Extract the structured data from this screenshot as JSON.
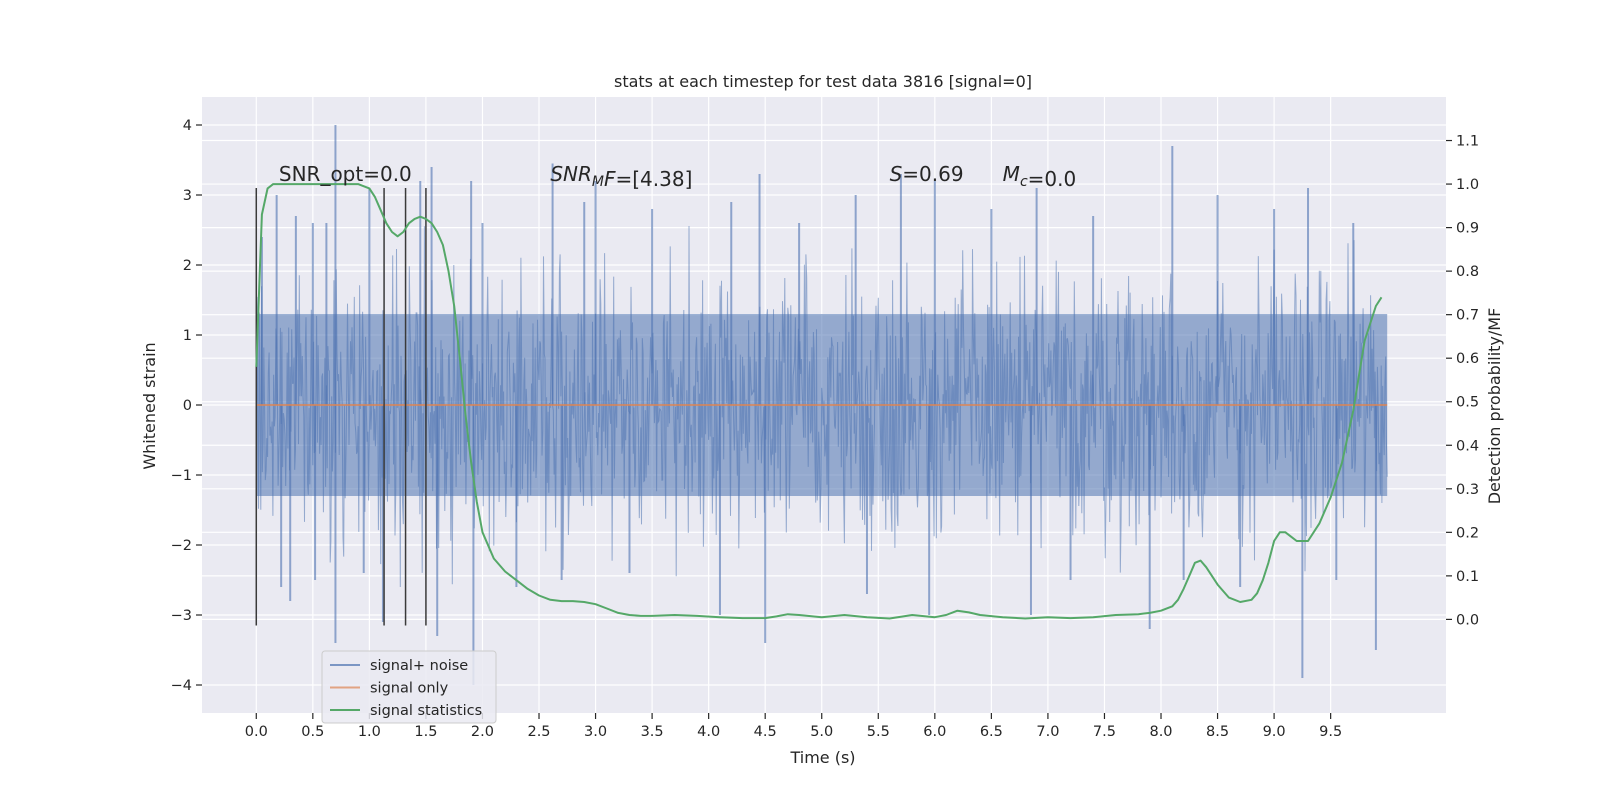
{
  "chart_data": {
    "type": "line",
    "title": "stats at each timestep for test data 3816 [signal=0]",
    "xlabel": "Time (s)",
    "ylabel": "Whitened strain",
    "y2label": "Detection probability/MF",
    "xlim": [
      -0.48,
      10.52
    ],
    "ylim": [
      -4.4,
      4.4
    ],
    "y2lim": [
      -0.215,
      1.2
    ],
    "x_ticks": [
      0.0,
      0.5,
      1.0,
      1.5,
      2.0,
      2.5,
      3.0,
      3.5,
      4.0,
      4.5,
      5.0,
      5.5,
      6.0,
      6.5,
      7.0,
      7.5,
      8.0,
      8.5,
      9.0,
      9.5
    ],
    "x_tick_labels": [
      "0.0",
      "0.5",
      "1.0",
      "1.5",
      "2.0",
      "2.5",
      "3.0",
      "3.5",
      "4.0",
      "4.5",
      "5.0",
      "5.5",
      "6.0",
      "6.5",
      "7.0",
      "7.5",
      "8.0",
      "8.5",
      "9.0",
      "9.5"
    ],
    "y_ticks": [
      -4,
      -3,
      -2,
      -1,
      0,
      1,
      2,
      3,
      4
    ],
    "y_tick_labels": [
      "−4",
      "−3",
      "−2",
      "−1",
      "0",
      "1",
      "2",
      "3",
      "4"
    ],
    "y2_ticks": [
      0.0,
      0.1,
      0.2,
      0.3,
      0.4,
      0.5,
      0.6,
      0.7,
      0.8,
      0.9,
      1.0,
      1.1
    ],
    "y2_tick_labels": [
      "0.0",
      "0.1",
      "0.2",
      "0.3",
      "0.4",
      "0.5",
      "0.6",
      "0.7",
      "0.8",
      "0.9",
      "1.0",
      "1.1"
    ],
    "grid": true,
    "legend_position": "lower-left",
    "series": [
      {
        "name": "signal+ noise",
        "color": "#4c72b0",
        "axis": "left",
        "x_range": [
          0.0,
          10.0
        ],
        "typical_band": [
          -1.3,
          1.3
        ],
        "spikes": [
          {
            "x": 0.05,
            "y": 2.4
          },
          {
            "x": 0.18,
            "y": 3.0
          },
          {
            "x": 0.22,
            "y": -2.6
          },
          {
            "x": 0.3,
            "y": -2.8
          },
          {
            "x": 0.35,
            "y": 2.7
          },
          {
            "x": 0.5,
            "y": 2.6
          },
          {
            "x": 0.52,
            "y": -2.5
          },
          {
            "x": 0.62,
            "y": 2.6
          },
          {
            "x": 0.7,
            "y": 4.0
          },
          {
            "x": 0.7,
            "y": -3.4
          },
          {
            "x": 0.95,
            "y": -2.4
          },
          {
            "x": 1.0,
            "y": 3.1
          },
          {
            "x": 1.12,
            "y": -3.1
          },
          {
            "x": 1.45,
            "y": 3.2
          },
          {
            "x": 1.55,
            "y": 3.4
          },
          {
            "x": 1.6,
            "y": -3.3
          },
          {
            "x": 1.9,
            "y": 3.2
          },
          {
            "x": 1.92,
            "y": -4.0
          },
          {
            "x": 2.0,
            "y": 2.6
          },
          {
            "x": 2.3,
            "y": -2.6
          },
          {
            "x": 2.62,
            "y": 3.45
          },
          {
            "x": 2.7,
            "y": -2.5
          },
          {
            "x": 2.9,
            "y": 2.9
          },
          {
            "x": 3.0,
            "y": 3.2
          },
          {
            "x": 3.3,
            "y": -2.4
          },
          {
            "x": 3.5,
            "y": 2.8
          },
          {
            "x": 4.1,
            "y": -3.0
          },
          {
            "x": 4.2,
            "y": 2.9
          },
          {
            "x": 4.45,
            "y": 3.3
          },
          {
            "x": 4.5,
            "y": -3.4
          },
          {
            "x": 4.8,
            "y": 2.6
          },
          {
            "x": 5.3,
            "y": 3.0
          },
          {
            "x": 5.4,
            "y": -2.7
          },
          {
            "x": 5.7,
            "y": 3.3
          },
          {
            "x": 5.95,
            "y": -3.0
          },
          {
            "x": 6.0,
            "y": 3.2
          },
          {
            "x": 6.5,
            "y": 2.8
          },
          {
            "x": 6.85,
            "y": -3.0
          },
          {
            "x": 6.9,
            "y": 3.1
          },
          {
            "x": 7.2,
            "y": -2.5
          },
          {
            "x": 7.4,
            "y": 2.7
          },
          {
            "x": 7.9,
            "y": -3.2
          },
          {
            "x": 8.1,
            "y": 3.7
          },
          {
            "x": 8.2,
            "y": -2.5
          },
          {
            "x": 8.5,
            "y": 3.0
          },
          {
            "x": 8.7,
            "y": -2.6
          },
          {
            "x": 9.0,
            "y": 2.8
          },
          {
            "x": 9.25,
            "y": -3.9
          },
          {
            "x": 9.3,
            "y": 3.1
          },
          {
            "x": 9.55,
            "y": -2.5
          },
          {
            "x": 9.7,
            "y": 2.6
          },
          {
            "x": 9.9,
            "y": -3.5
          }
        ]
      },
      {
        "name": "signal only",
        "color": "#dd8452",
        "axis": "left",
        "x": [
          0.0,
          10.0
        ],
        "y": [
          0.0,
          0.0
        ]
      },
      {
        "name": "signal statistics",
        "color": "#55a868",
        "axis": "right",
        "x": [
          0.0,
          0.05,
          0.1,
          0.15,
          0.2,
          0.3,
          0.4,
          0.5,
          0.6,
          0.7,
          0.8,
          0.9,
          1.0,
          1.05,
          1.1,
          1.15,
          1.2,
          1.25,
          1.3,
          1.35,
          1.4,
          1.45,
          1.5,
          1.55,
          1.6,
          1.65,
          1.7,
          1.75,
          1.8,
          1.85,
          1.9,
          1.95,
          2.0,
          2.1,
          2.2,
          2.3,
          2.4,
          2.5,
          2.6,
          2.7,
          2.8,
          2.9,
          3.0,
          3.1,
          3.2,
          3.3,
          3.4,
          3.5,
          3.7,
          3.9,
          4.1,
          4.3,
          4.5,
          4.6,
          4.7,
          4.8,
          5.0,
          5.2,
          5.4,
          5.6,
          5.8,
          6.0,
          6.1,
          6.2,
          6.3,
          6.4,
          6.6,
          6.8,
          7.0,
          7.2,
          7.4,
          7.6,
          7.8,
          7.9,
          8.0,
          8.1,
          8.15,
          8.2,
          8.25,
          8.3,
          8.35,
          8.4,
          8.5,
          8.6,
          8.7,
          8.8,
          8.85,
          8.9,
          8.95,
          9.0,
          9.05,
          9.1,
          9.15,
          9.2,
          9.3,
          9.4,
          9.5,
          9.6,
          9.7,
          9.8,
          9.9,
          9.95
        ],
        "y": [
          0.58,
          0.93,
          0.99,
          1.0,
          1.0,
          1.0,
          1.0,
          1.0,
          1.0,
          1.0,
          1.0,
          1.0,
          0.99,
          0.97,
          0.94,
          0.91,
          0.89,
          0.88,
          0.89,
          0.91,
          0.92,
          0.925,
          0.92,
          0.91,
          0.89,
          0.86,
          0.8,
          0.72,
          0.6,
          0.47,
          0.36,
          0.27,
          0.2,
          0.14,
          0.11,
          0.09,
          0.07,
          0.055,
          0.045,
          0.042,
          0.042,
          0.04,
          0.035,
          0.025,
          0.015,
          0.01,
          0.008,
          0.008,
          0.01,
          0.008,
          0.005,
          0.003,
          0.003,
          0.007,
          0.012,
          0.01,
          0.005,
          0.01,
          0.005,
          0.002,
          0.01,
          0.005,
          0.01,
          0.02,
          0.016,
          0.01,
          0.005,
          0.002,
          0.005,
          0.003,
          0.005,
          0.01,
          0.012,
          0.015,
          0.02,
          0.03,
          0.045,
          0.07,
          0.1,
          0.13,
          0.135,
          0.12,
          0.08,
          0.05,
          0.04,
          0.045,
          0.06,
          0.09,
          0.13,
          0.18,
          0.2,
          0.2,
          0.19,
          0.18,
          0.18,
          0.22,
          0.28,
          0.36,
          0.48,
          0.64,
          0.72,
          0.74
        ]
      }
    ],
    "vertical_lines": {
      "color": "#3a3a3a",
      "x": [
        0.0,
        1.13,
        1.32,
        1.5
      ],
      "ymin": -3.15,
      "ymax": 3.1
    },
    "annotations": [
      {
        "x": 0.2,
        "y": 3.2,
        "parts": [
          {
            "t": "SNR_opt=0.0",
            "style": "normal"
          }
        ]
      },
      {
        "x": 2.6,
        "y": 3.2,
        "parts": [
          {
            "t": "SNR",
            "style": "italic"
          },
          {
            "t": "M",
            "style": "italic-sub"
          },
          {
            "t": "F",
            "style": "italic"
          },
          {
            "t": "=[4.38]",
            "style": "normal"
          }
        ]
      },
      {
        "x": 5.6,
        "y": 3.2,
        "parts": [
          {
            "t": "S",
            "style": "italic"
          },
          {
            "t": "=0.69",
            "style": "normal"
          }
        ]
      },
      {
        "x": 6.6,
        "y": 3.2,
        "parts": [
          {
            "t": "M",
            "style": "italic"
          },
          {
            "t": "c",
            "style": "italic-sub"
          },
          {
            "t": "=0.0",
            "style": "normal"
          }
        ]
      }
    ]
  }
}
